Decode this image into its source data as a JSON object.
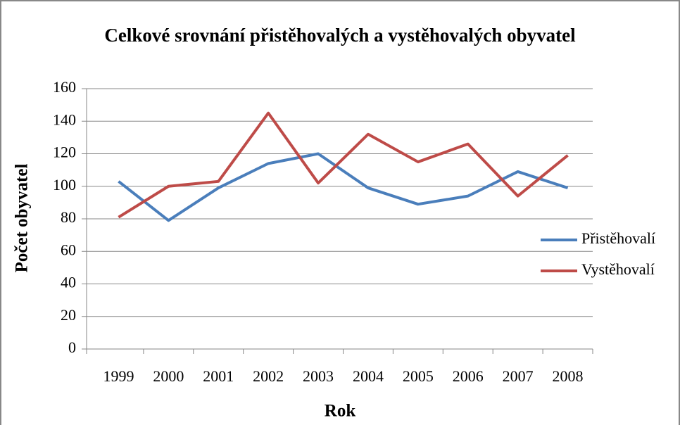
{
  "chart_data": {
    "type": "line",
    "title": "Celkové srovnání přistěhovalých a vystěhovalých obyvatel",
    "x_label": "Rok",
    "y_label": "Počet obyvatel",
    "categories": [
      "1999",
      "2000",
      "2001",
      "2002",
      "2003",
      "2004",
      "2005",
      "2006",
      "2007",
      "2008"
    ],
    "series": [
      {
        "name": "Přistěhovalí",
        "color": "#4a7ebb",
        "values": [
          103,
          79,
          99,
          114,
          120,
          99,
          89,
          94,
          109,
          99
        ]
      },
      {
        "name": "Vystěhovalí",
        "color": "#be4b48",
        "values": [
          81,
          100,
          103,
          145,
          102,
          132,
          115,
          126,
          94,
          119
        ]
      }
    ],
    "ylim": [
      0,
      160
    ],
    "yticks": [
      0,
      20,
      40,
      60,
      80,
      100,
      120,
      140,
      160
    ],
    "grid": true,
    "legend": "right"
  }
}
